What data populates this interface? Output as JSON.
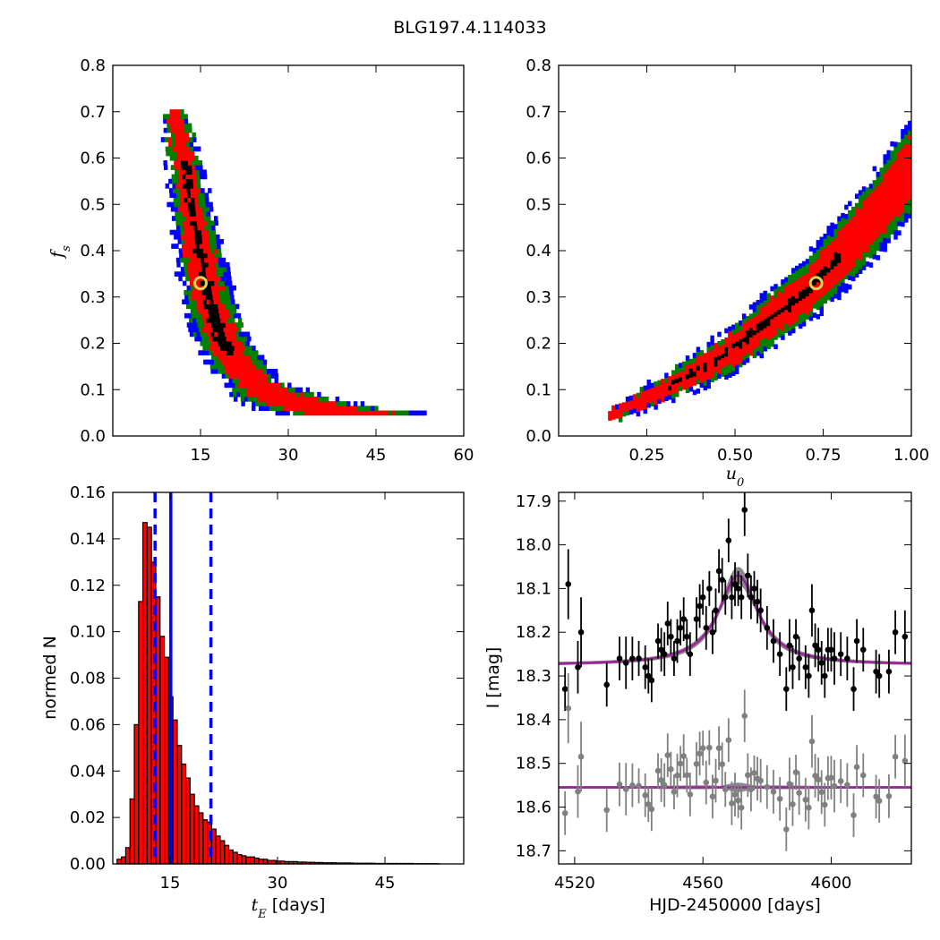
{
  "figure": {
    "title": "BLG197.4.114033"
  },
  "chart_data": [
    {
      "panel": "top-left",
      "type": "heatmap",
      "xlabel": "",
      "ylabel": "f_s",
      "xlim": [
        0,
        60
      ],
      "ylim": [
        0.0,
        0.8
      ],
      "xticks": [
        "15",
        "30",
        "45",
        "60"
      ],
      "yticks": [
        "0.0",
        "0.1",
        "0.2",
        "0.3",
        "0.4",
        "0.5",
        "0.6",
        "0.7",
        "0.8"
      ],
      "levels": [
        {
          "name": "3-sigma",
          "color": "#0000ff"
        },
        {
          "name": "2-sigma",
          "color": "#007f00"
        },
        {
          "name": "1-sigma",
          "color": "#ff0000"
        },
        {
          "name": "core",
          "color": "#000000"
        }
      ],
      "ridge": [
        [
          10.5,
          0.7
        ],
        [
          11,
          0.65
        ],
        [
          12,
          0.58
        ],
        [
          13,
          0.5
        ],
        [
          14,
          0.43
        ],
        [
          15,
          0.36
        ],
        [
          16,
          0.3
        ],
        [
          17,
          0.25
        ],
        [
          18.5,
          0.2
        ],
        [
          21,
          0.15
        ],
        [
          24,
          0.11
        ],
        [
          28,
          0.08
        ],
        [
          33,
          0.06
        ],
        [
          40,
          0.045
        ],
        [
          48,
          0.04
        ],
        [
          56,
          0.04
        ]
      ],
      "best_fit": {
        "x": 15,
        "y": 0.33
      }
    },
    {
      "panel": "top-right",
      "type": "heatmap",
      "xlabel": "u_0",
      "ylabel": "",
      "xlim": [
        0.0,
        1.0
      ],
      "ylim": [
        0.0,
        0.8
      ],
      "xticks": [
        "0.25",
        "0.50",
        "0.75",
        "1.00"
      ],
      "yticks": [
        "0.0",
        "0.1",
        "0.2",
        "0.3",
        "0.4",
        "0.5",
        "0.6",
        "0.7",
        "0.8"
      ],
      "ridge": [
        [
          0.14,
          0.04
        ],
        [
          0.2,
          0.06
        ],
        [
          0.3,
          0.1
        ],
        [
          0.4,
          0.14
        ],
        [
          0.5,
          0.19
        ],
        [
          0.6,
          0.25
        ],
        [
          0.7,
          0.31
        ],
        [
          0.8,
          0.39
        ],
        [
          0.9,
          0.48
        ],
        [
          1.0,
          0.58
        ]
      ],
      "best_fit": {
        "x": 0.73,
        "y": 0.33
      }
    },
    {
      "panel": "bottom-left",
      "type": "bar",
      "xlabel": "t_E",
      "xlabel_unit": "[days]",
      "ylabel": "normed N",
      "xlim": [
        7,
        56
      ],
      "ylim": [
        0.0,
        0.16
      ],
      "xticks": [
        "15",
        "30",
        "45"
      ],
      "yticks": [
        "0.00",
        "0.02",
        "0.04",
        "0.06",
        "0.08",
        "0.10",
        "0.12",
        "0.14",
        "0.16"
      ],
      "bin_start": 7.6,
      "bin_width": 0.6,
      "values": [
        0.002,
        0.003,
        0.007,
        0.028,
        0.06,
        0.113,
        0.147,
        0.145,
        0.13,
        0.115,
        0.098,
        0.089,
        0.072,
        0.062,
        0.051,
        0.043,
        0.037,
        0.03,
        0.025,
        0.022,
        0.019,
        0.018,
        0.015,
        0.012,
        0.01,
        0.008,
        0.006,
        0.005,
        0.004,
        0.0035,
        0.003,
        0.003,
        0.0025,
        0.002,
        0.002,
        0.0015,
        0.0015,
        0.0012,
        0.0012,
        0.001,
        0.001,
        0.001,
        0.0008,
        0.0008,
        0.0007,
        0.0007,
        0.0006,
        0.0006,
        0.0005,
        0.0005,
        0.0005,
        0.0004,
        0.0004,
        0.0004,
        0.0004,
        0.0003,
        0.0003,
        0.0003,
        0.0003,
        0.0003,
        0.0002,
        0.0002,
        0.0002,
        0.0002,
        0.0002,
        0.0002,
        0.0002,
        0.0002,
        0.0002,
        0.0001,
        0.0001,
        0.0001,
        0.0001,
        0.0001,
        0.0001
      ],
      "bar_color": "#ff0000",
      "median_line": 15.1,
      "interval_lines": [
        12.9,
        20.7
      ],
      "line_color": "#0000ff"
    },
    {
      "panel": "bottom-right",
      "type": "scatter",
      "xlabel": "HJD-2450000 [days]",
      "ylabel": "I [mag]",
      "xlim": [
        4515,
        4625
      ],
      "ylim": [
        18.73,
        17.88
      ],
      "xticks": [
        "4520",
        "4560",
        "4600"
      ],
      "yticks": [
        "17.9",
        "18.0",
        "18.1",
        "18.2",
        "18.3",
        "18.4",
        "18.5",
        "18.6",
        "18.7"
      ],
      "model": {
        "t0": 4571,
        "baseline": 18.275,
        "amplitude": 0.205,
        "width": 7.5
      },
      "residual_baseline": 18.555,
      "residual_offset": 0.28,
      "model_color": "#a020a0",
      "series": [
        {
          "color": "#000000",
          "points": [
            [
              4517,
              18.33,
              0.05
            ],
            [
              4518,
              18.09,
              0.08
            ],
            [
              4521,
              18.28,
              0.06
            ],
            [
              4522,
              18.2,
              0.08
            ],
            [
              4530,
              18.32,
              0.05
            ],
            [
              4534,
              18.26,
              0.05
            ],
            [
              4536,
              18.27,
              0.06
            ],
            [
              4538,
              18.26,
              0.05
            ],
            [
              4540,
              18.26,
              0.04
            ],
            [
              4542,
              18.28,
              0.05
            ],
            [
              4543,
              18.3,
              0.04
            ],
            [
              4544,
              18.31,
              0.05
            ],
            [
              4546,
              18.22,
              0.04
            ],
            [
              4547,
              18.24,
              0.05
            ],
            [
              4548,
              18.25,
              0.05
            ],
            [
              4549,
              18.18,
              0.05
            ],
            [
              4550,
              18.21,
              0.04
            ],
            [
              4551,
              18.26,
              0.04
            ],
            [
              4552,
              18.22,
              0.05
            ],
            [
              4553,
              18.19,
              0.04
            ],
            [
              4554,
              18.17,
              0.05
            ],
            [
              4555,
              18.21,
              0.04
            ],
            [
              4556,
              18.25,
              0.05
            ],
            [
              4558,
              18.17,
              0.05
            ],
            [
              4559,
              18.14,
              0.05
            ],
            [
              4560,
              18.12,
              0.04
            ],
            [
              4561,
              18.19,
              0.05
            ],
            [
              4562,
              18.1,
              0.04
            ],
            [
              4563,
              18.2,
              0.05
            ],
            [
              4564,
              18.15,
              0.05
            ],
            [
              4565,
              18.06,
              0.05
            ],
            [
              4566,
              18.08,
              0.05
            ],
            [
              4567,
              18.12,
              0.04
            ],
            [
              4568,
              17.99,
              0.05
            ],
            [
              4569,
              18.12,
              0.05
            ],
            [
              4570,
              18.09,
              0.05
            ],
            [
              4571,
              18.1,
              0.04
            ],
            [
              4572,
              18.12,
              0.05
            ],
            [
              4573,
              17.92,
              0.06
            ],
            [
              4574,
              18.07,
              0.05
            ],
            [
              4575,
              18.12,
              0.05
            ],
            [
              4576,
              18.1,
              0.04
            ],
            [
              4577,
              18.13,
              0.05
            ],
            [
              4578,
              18.15,
              0.05
            ],
            [
              4580,
              18.19,
              0.05
            ],
            [
              4582,
              18.22,
              0.05
            ],
            [
              4584,
              18.25,
              0.05
            ],
            [
              4586,
              18.33,
              0.05
            ],
            [
              4587,
              18.23,
              0.06
            ],
            [
              4588,
              18.28,
              0.05
            ],
            [
              4589,
              18.21,
              0.04
            ],
            [
              4590,
              18.26,
              0.05
            ],
            [
              4592,
              18.28,
              0.05
            ],
            [
              4593,
              18.3,
              0.05
            ],
            [
              4594,
              18.15,
              0.06
            ],
            [
              4595,
              18.23,
              0.05
            ],
            [
              4596,
              18.24,
              0.05
            ],
            [
              4597,
              18.27,
              0.05
            ],
            [
              4598,
              18.3,
              0.05
            ],
            [
              4599,
              18.24,
              0.05
            ],
            [
              4600,
              18.24,
              0.05
            ],
            [
              4601,
              18.26,
              0.06
            ],
            [
              4603,
              18.25,
              0.05
            ],
            [
              4605,
              18.26,
              0.05
            ],
            [
              4607,
              18.33,
              0.05
            ],
            [
              4608,
              18.22,
              0.05
            ],
            [
              4610,
              18.24,
              0.05
            ],
            [
              4614,
              18.29,
              0.05
            ],
            [
              4615,
              18.3,
              0.05
            ],
            [
              4618,
              18.29,
              0.05
            ],
            [
              4620,
              18.2,
              0.05
            ],
            [
              4623,
              18.21,
              0.06
            ]
          ]
        }
      ]
    }
  ]
}
